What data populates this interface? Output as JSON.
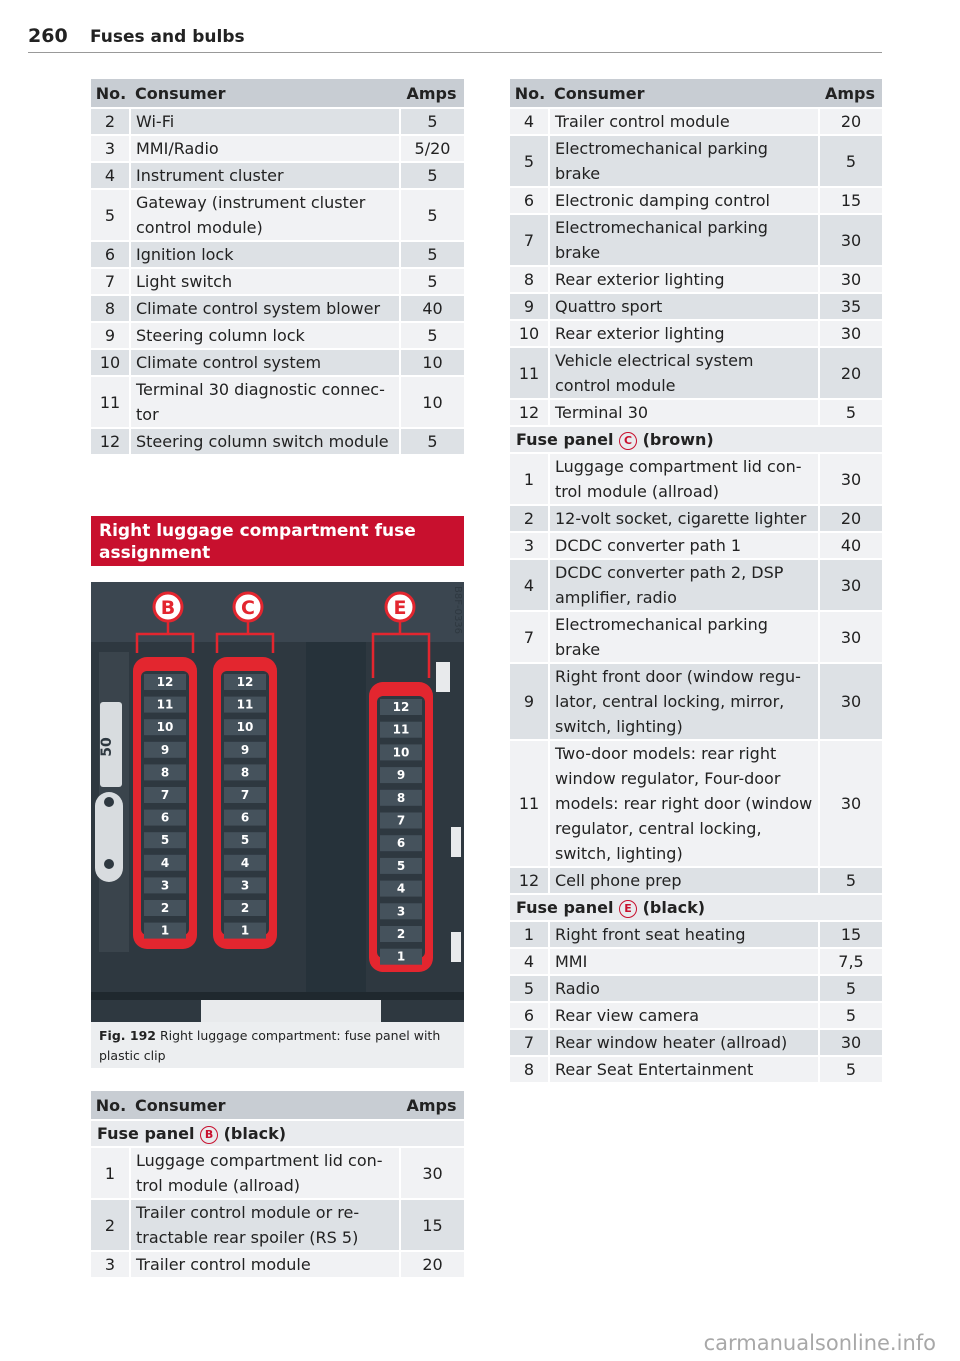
{
  "header": {
    "page_number": "260",
    "section_title": "Fuses and bulbs"
  },
  "columns": {
    "no": "No.",
    "consumer": "Consumer",
    "amps": "Amps"
  },
  "table_top_left": [
    {
      "no": "2",
      "consumer": "Wi-Fi",
      "amps": "5"
    },
    {
      "no": "3",
      "consumer": "MMI/Radio",
      "amps": "5/20"
    },
    {
      "no": "4",
      "consumer": "Instrument cluster",
      "amps": "5"
    },
    {
      "no": "5",
      "consumer": "Gateway (instrument cluster control module)",
      "amps": "5"
    },
    {
      "no": "6",
      "consumer": "Ignition lock",
      "amps": "5"
    },
    {
      "no": "7",
      "consumer": "Light switch",
      "amps": "5"
    },
    {
      "no": "8",
      "consumer": "Climate control system blower",
      "amps": "40"
    },
    {
      "no": "9",
      "consumer": "Steering column lock",
      "amps": "5"
    },
    {
      "no": "10",
      "consumer": "Climate control system",
      "amps": "10"
    },
    {
      "no": "11",
      "consumer": "Terminal 30 diagnostic connec-tor",
      "amps": "10"
    },
    {
      "no": "12",
      "consumer": "Steering column switch module",
      "amps": "5"
    }
  ],
  "section_heading": "Right luggage compartment fuse assignment",
  "figure": {
    "panel_letters": [
      "B",
      "C",
      "E"
    ],
    "fuse_numbers": [
      "12",
      "11",
      "10",
      "9",
      "8",
      "7",
      "6",
      "5",
      "4",
      "3",
      "2",
      "1"
    ],
    "side_label": "50",
    "code": "B8F-0336",
    "caption_label": "Fig. 192",
    "caption_text": "Right luggage compartment: fuse panel with plastic clip"
  },
  "table_bottom_left": {
    "panel_b": {
      "prefix": "Fuse panel",
      "letter": "B",
      "suffix": "(black)"
    },
    "rows": [
      {
        "no": "1",
        "consumer": "Luggage compartment lid con-trol module (allroad)",
        "amps": "30"
      },
      {
        "no": "2",
        "consumer": "Trailer control module or re-tractable rear spoiler (RS 5)",
        "amps": "15"
      },
      {
        "no": "3",
        "consumer": "Trailer control module",
        "amps": "20"
      }
    ]
  },
  "table_right": {
    "rows_b": [
      {
        "no": "4",
        "consumer": "Trailer control module",
        "amps": "20"
      },
      {
        "no": "5",
        "consumer": "Electromechanical parking brake",
        "amps": "5"
      },
      {
        "no": "6",
        "consumer": "Electronic damping control",
        "amps": "15"
      },
      {
        "no": "7",
        "consumer": "Electromechanical parking brake",
        "amps": "30"
      },
      {
        "no": "8",
        "consumer": "Rear exterior lighting",
        "amps": "30"
      },
      {
        "no": "9",
        "consumer": "Quattro sport",
        "amps": "35"
      },
      {
        "no": "10",
        "consumer": "Rear exterior lighting",
        "amps": "30"
      },
      {
        "no": "11",
        "consumer": "Vehicle electrical system control module",
        "amps": "20"
      },
      {
        "no": "12",
        "consumer": "Terminal 30",
        "amps": "5"
      }
    ],
    "panel_c": {
      "prefix": "Fuse panel",
      "letter": "C",
      "suffix": "(brown)"
    },
    "rows_c": [
      {
        "no": "1",
        "consumer": "Luggage compartment lid con-trol module (allroad)",
        "amps": "30"
      },
      {
        "no": "2",
        "consumer": "12-volt socket, cigarette lighter",
        "amps": "20"
      },
      {
        "no": "3",
        "consumer": "DCDC converter path 1",
        "amps": "40"
      },
      {
        "no": "4",
        "consumer": "DCDC converter path 2, DSP amplifier, radio",
        "amps": "30"
      },
      {
        "no": "7",
        "consumer": "Electromechanical parking brake",
        "amps": "30"
      },
      {
        "no": "9",
        "consumer": "Right front door (window regu-lator, central locking, mirror, switch, lighting)",
        "amps": "30"
      },
      {
        "no": "11",
        "consumer": "Two-door models: rear right window regulator, Four-door models: rear right door (window regulator, central locking, switch, lighting)",
        "amps": "30"
      },
      {
        "no": "12",
        "consumer": "Cell phone prep",
        "amps": "5"
      }
    ],
    "panel_e": {
      "prefix": "Fuse panel",
      "letter": "E",
      "suffix": "(black)"
    },
    "rows_e": [
      {
        "no": "1",
        "consumer": "Right front seat heating",
        "amps": "15"
      },
      {
        "no": "4",
        "consumer": "MMI",
        "amps": "7,5"
      },
      {
        "no": "5",
        "consumer": "Radio",
        "amps": "5"
      },
      {
        "no": "6",
        "consumer": "Rear view camera",
        "amps": "5"
      },
      {
        "no": "7",
        "consumer": "Rear window heater (allroad)",
        "amps": "30"
      },
      {
        "no": "8",
        "consumer": "Rear Seat Entertainment",
        "amps": "5"
      }
    ]
  },
  "watermark": "carmanualsonline.info",
  "colors": {
    "accent_red": "#c8102e",
    "header_gray": "#c8cdd3",
    "row_dark": "#dde1e5",
    "row_light": "#f1f2f4"
  }
}
